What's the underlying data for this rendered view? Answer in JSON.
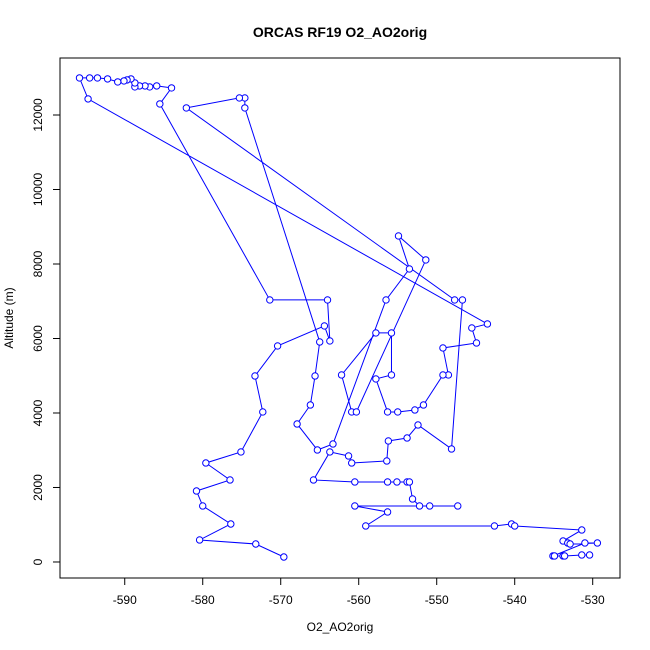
{
  "chart_data": {
    "type": "line",
    "title": "ORCAS RF19 O2_AO2orig",
    "x_label": "O2_AO2orig",
    "y_label": "Altitude (m)",
    "color": "#0000ff",
    "x": [
      -569.6,
      -573.2,
      -580.4,
      -576.4,
      -580.0,
      -580.8,
      -576.5,
      -579.6,
      -575.1,
      -572.3,
      -573.3,
      -570.4,
      -564.4,
      -563.7,
      -564.0,
      -571.4,
      -585.5,
      -584.0,
      -585.9,
      -586.8,
      -587.4,
      -588.1,
      -588.7,
      -588.7,
      -589.2,
      -589.7,
      -590.1,
      -590.9,
      -592.2,
      -593.5,
      -594.5,
      -595.8,
      -594.7,
      -543.5,
      -545.5,
      -544.9,
      -549.2,
      -548.5,
      -549.2,
      -551.7,
      -552.8,
      -555.0,
      -556.3,
      -557.8,
      -555.8,
      -555.8,
      -557.8,
      -562.2,
      -560.9,
      -560.3,
      -551.4,
      -554.9,
      -553.5,
      -556.5,
      -563.3,
      -565.3,
      -567.9,
      -566.2,
      -565.6,
      -565.0,
      -574.6,
      -574.6,
      -575.3,
      -582.1,
      -547.7,
      -546.7,
      -548.1,
      -552.4,
      -553.8,
      -556.2,
      -556.4,
      -560.9,
      -561.3,
      -563.7,
      -565.8,
      -560.5,
      -556.3,
      -555.1,
      -553.8,
      -553.5,
      -553.1,
      -552.2,
      -550.9,
      -547.3,
      -560.5,
      -556.3,
      -559.1,
      -542.6,
      -540.4,
      -540.0,
      -531.4,
      -533.8,
      -533.2,
      -532.9,
      -529.4,
      -531.0,
      -535.1,
      -534.9,
      -533.8,
      -533.6,
      -531.4,
      -530.4
    ],
    "values": [
      134,
      483,
      591,
      1020,
      1504,
      1906,
      2202,
      2658,
      2954,
      4028,
      4994,
      5800,
      6337,
      5934,
      7035,
      7035,
      12297,
      12727,
      12781,
      12754,
      12781,
      12781,
      12754,
      12861,
      12969,
      12942,
      12915,
      12888,
      12969,
      12995,
      12995,
      12995,
      12432,
      6390,
      6283,
      5880,
      5746,
      5021,
      5021,
      4215,
      4081,
      4028,
      4028,
      4914,
      5021,
      6149,
      6149,
      5021,
      4028,
      4028,
      8109,
      8753,
      7867,
      7035,
      3168,
      3007,
      3705,
      4215,
      4994,
      5907,
      12190,
      12458,
      12458,
      12190,
      7035,
      7035,
      3034,
      3678,
      3329,
      3249,
      2712,
      2658,
      2846,
      2954,
      2202,
      2148,
      2148,
      2148,
      2148,
      2148,
      1692,
      1504,
      1504,
      1504,
      1504,
      1343,
      967,
      967,
      1020,
      967,
      859,
      564,
      510,
      483,
      510,
      510,
      161,
      161,
      161,
      161,
      188,
      188
    ],
    "xlim": [
      -598.3,
      -526.5
    ],
    "ylim": [
      -430,
      13530
    ],
    "xticks": [
      -590,
      -580,
      -570,
      -560,
      -550,
      -540,
      -530
    ],
    "yticks": [
      0,
      2000,
      4000,
      6000,
      8000,
      10000,
      12000
    ]
  }
}
